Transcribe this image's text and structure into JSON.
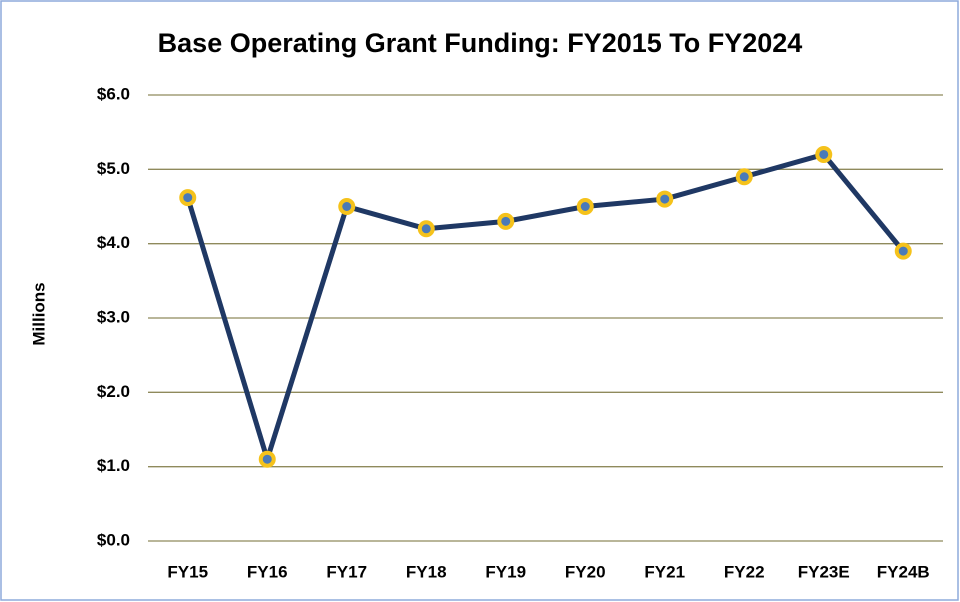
{
  "chart_data": {
    "type": "line",
    "title": "Base Operating Grant Funding: FY2015 To FY2024",
    "y_label": "Millions",
    "categories": [
      "FY15",
      "FY16",
      "FY17",
      "FY18",
      "FY19",
      "FY20",
      "FY21",
      "FY22",
      "FY23E",
      "FY24B"
    ],
    "values": [
      4.62,
      1.1,
      4.5,
      4.2,
      4.3,
      4.5,
      4.6,
      4.9,
      5.2,
      3.9
    ],
    "color": "#1f3864",
    "marker_color": "#4a7ab8",
    "marker_edge_color": "#f5c21b",
    "ylim": [
      0,
      6
    ],
    "yticks": [
      {
        "value": 0,
        "label": "$0.0"
      },
      {
        "value": 1,
        "label": "$1.0"
      },
      {
        "value": 2,
        "label": "$2.0"
      },
      {
        "value": 3,
        "label": "$3.0"
      },
      {
        "value": 4,
        "label": "$4.0"
      },
      {
        "value": 5,
        "label": "$5.0"
      },
      {
        "value": 6,
        "label": "$6.0"
      }
    ],
    "grid": true,
    "grid_color": "#8f8a5c"
  }
}
